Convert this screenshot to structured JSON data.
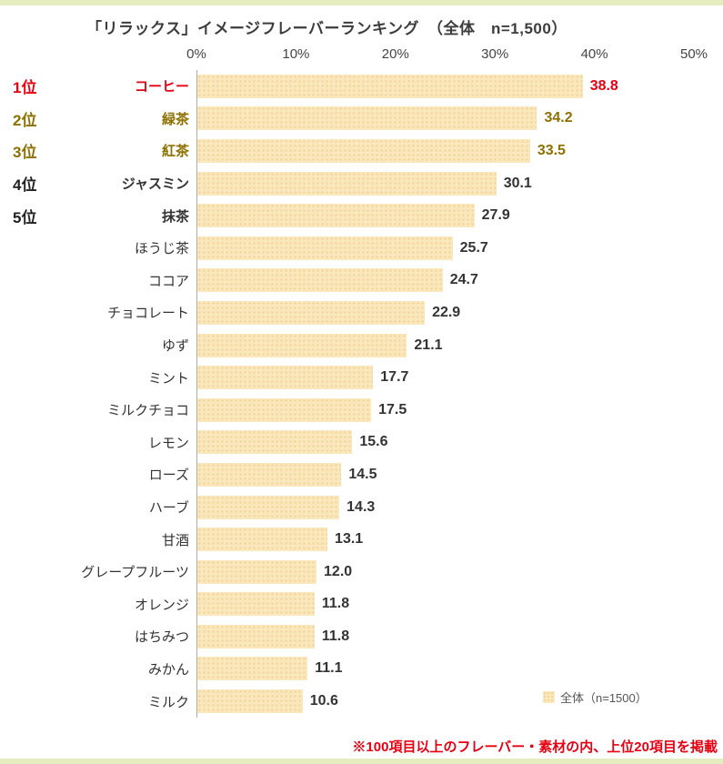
{
  "title": "「リラックス」イメージフレーバーランキング　（全体　n=1,500）",
  "footnote": "※100項目以上のフレーバー・素材の内、上位20項目を掲載",
  "legend": {
    "label": "全体（n=1500）"
  },
  "colors": {
    "band": "#E4ECC0",
    "bar-fill": "#FBE7BC",
    "bar-dot": "#F0D295",
    "red": "#E60012",
    "olive": "#8C7000",
    "axis-line": "#ADADAD"
  },
  "chart_data": {
    "type": "bar",
    "orientation": "horizontal",
    "title": "「リラックス」イメージフレーバーランキング　（全体　n=1,500）",
    "categories": [
      "コーヒー",
      "緑茶",
      "紅茶",
      "ジャスミン",
      "抹茶",
      "ほうじ茶",
      "ココア",
      "チョコレート",
      "ゆず",
      "ミント",
      "ミルクチョコ",
      "レモン",
      "ローズ",
      "ハーブ",
      "甘酒",
      "グレープフルーツ",
      "オレンジ",
      "はちみつ",
      "みかん",
      "ミルク"
    ],
    "values": [
      38.8,
      34.2,
      33.5,
      30.1,
      27.9,
      25.7,
      24.7,
      22.9,
      21.1,
      17.7,
      17.5,
      15.6,
      14.5,
      14.3,
      13.1,
      12.0,
      11.8,
      11.8,
      11.1,
      10.6
    ],
    "ranks": [
      "1位",
      "2位",
      "3位",
      "4位",
      "5位"
    ],
    "x_ticks": [
      "0%",
      "10%",
      "20%",
      "30%",
      "40%",
      "50%"
    ],
    "xlim": [
      0,
      50
    ],
    "xlabel": "",
    "ylabel": "",
    "grid": false,
    "legend": "全体（n=1500）",
    "legend_position": "bottom-right"
  }
}
